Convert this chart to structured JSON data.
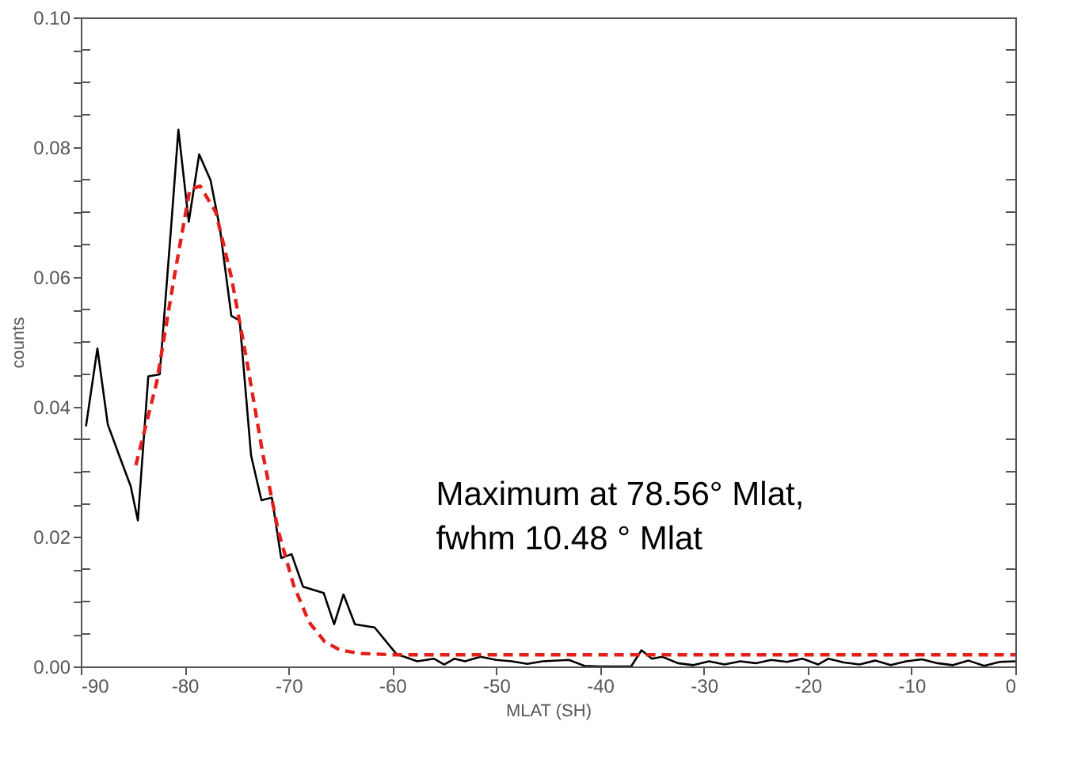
{
  "chart_data": {
    "type": "line",
    "xlabel": "MLAT (SH)",
    "ylabel": "counts",
    "xlim": [
      -90,
      0
    ],
    "ylim": [
      0,
      0.1
    ],
    "xticks": [
      -90,
      -80,
      -70,
      -60,
      -50,
      -40,
      -30,
      -20,
      -10,
      0
    ],
    "yticks": [
      {
        "value": 0,
        "label": "0.00"
      },
      {
        "value": 0.005,
        "label": null
      },
      {
        "value": 0.01,
        "label": null
      },
      {
        "value": 0.015,
        "label": null
      },
      {
        "value": 0.02,
        "label": "0.02"
      },
      {
        "value": 0.025,
        "label": null
      },
      {
        "value": 0.03,
        "label": null
      },
      {
        "value": 0.035,
        "label": null
      },
      {
        "value": 0.04,
        "label": "0.04"
      },
      {
        "value": 0.045,
        "label": null
      },
      {
        "value": 0.05,
        "label": null
      },
      {
        "value": 0.055,
        "label": null
      },
      {
        "value": 0.06,
        "label": "0.06"
      },
      {
        "value": 0.065,
        "label": null
      },
      {
        "value": 0.07,
        "label": null
      },
      {
        "value": 0.075,
        "label": null
      },
      {
        "value": 0.08,
        "label": "0.08"
      },
      {
        "value": 0.085,
        "label": null
      },
      {
        "value": 0.09,
        "label": null
      },
      {
        "value": 0.095,
        "label": null
      },
      {
        "value": 0.1,
        "label": "0.10"
      }
    ],
    "grid": false,
    "annotations": [
      "Maximum at 78.56° Mlat,\nfwhm 10.48 ° Mlat"
    ],
    "series": [
      {
        "color": "#000000",
        "line_style": "solid",
        "x": [
          -89.5,
          -88.4,
          -87.4,
          -86.3,
          -85.2,
          -84.5,
          -83.5,
          -82.4,
          -81.3,
          -80.6,
          -79.6,
          -78.6,
          -77.5,
          -76.6,
          -75.5,
          -74.7,
          -73.6,
          -72.6,
          -71.6,
          -70.7,
          -69.7,
          -68.6,
          -66.6,
          -65.6,
          -64.7,
          -63.6,
          -61.7,
          -59.6,
          -57.6,
          -56,
          -55,
          -54,
          -53,
          -51.5,
          -50,
          -48.5,
          -47,
          -45.5,
          -43,
          -41.5,
          -40,
          -37,
          -36,
          -35,
          -34,
          -32.5,
          -31,
          -29.5,
          -28,
          -26.5,
          -25,
          -23.5,
          -22,
          -20.5,
          -19,
          -18,
          -16.5,
          -15,
          -13.5,
          -12,
          -10.5,
          -9,
          -7.5,
          -6,
          -4.5,
          -3,
          -1.5,
          0
        ],
        "values": [
          0.037,
          0.049,
          0.0373,
          0.0325,
          0.0278,
          0.0225,
          0.0447,
          0.045,
          0.0677,
          0.0827,
          0.0685,
          0.0789,
          0.0749,
          0.0675,
          0.054,
          0.0533,
          0.0325,
          0.0256,
          0.026,
          0.0167,
          0.0173,
          0.0123,
          0.0113,
          0.0065,
          0.0111,
          0.0065,
          0.006,
          0.0019,
          0.0008,
          0.0012,
          0.0003,
          0.0012,
          0.0008,
          0.0015,
          0.001,
          0.0008,
          0.0004,
          0.0008,
          0.001,
          0.0001,
          0,
          0,
          0.0025,
          0.0012,
          0.0015,
          0.0005,
          0.0002,
          0.0008,
          0.0003,
          0.0008,
          0.0005,
          0.001,
          0.0007,
          0.0012,
          0.0003,
          0.0012,
          0.0006,
          0.0003,
          0.0009,
          0.0002,
          0.0008,
          0.0011,
          0.0005,
          0.0002,
          0.0009,
          0.0001,
          0.0007,
          0.0008
        ]
      },
      {
        "color": "#e3201b",
        "line_style": "dashed",
        "x": [
          -84.7,
          -82.7,
          -81,
          -79.5,
          -78.5,
          -77,
          -75.5,
          -74,
          -72.5,
          -71,
          -69.5,
          -68,
          -66.5,
          -65,
          -63,
          -60,
          0
        ],
        "values": [
          0.031,
          0.0437,
          0.06,
          0.0735,
          0.074,
          0.07,
          0.06,
          0.047,
          0.033,
          0.021,
          0.0125,
          0.0068,
          0.0038,
          0.0025,
          0.002,
          0.0018,
          0.0018
        ]
      }
    ]
  }
}
